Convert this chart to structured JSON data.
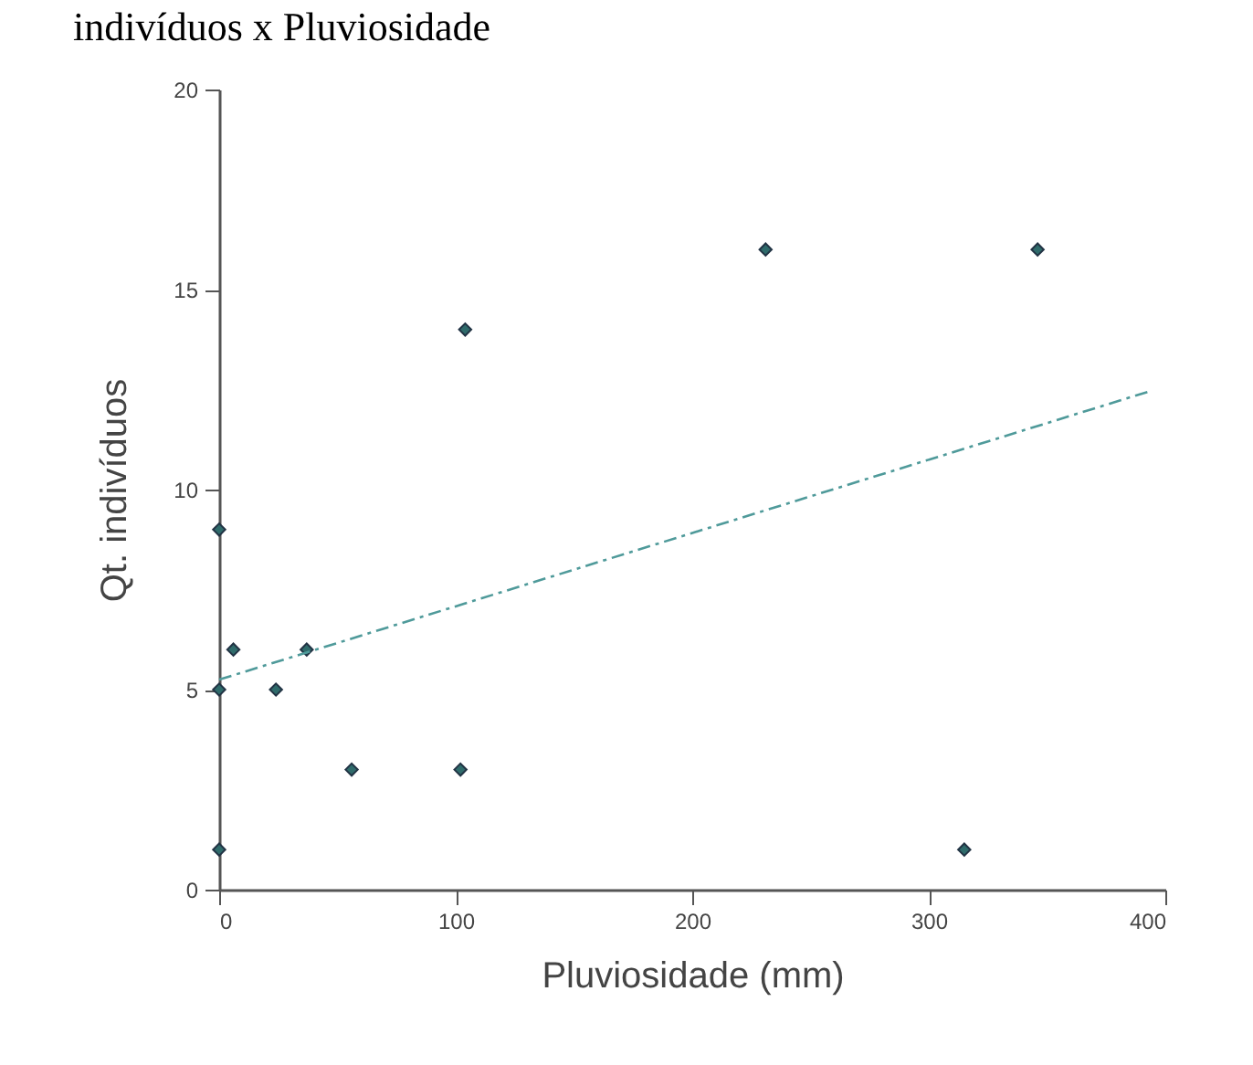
{
  "chart_data": {
    "type": "scatter",
    "title": "indivíduos x Pluviosidade",
    "xlabel": "Pluviosidade (mm)",
    "ylabel": "Qt. indivíduos",
    "xlim": [
      0,
      400
    ],
    "xticks": [
      0,
      100,
      200,
      300,
      400
    ],
    "ylim": [
      0,
      20
    ],
    "yticks": [
      0,
      5,
      10,
      15,
      20
    ],
    "grid": false,
    "series": [
      {
        "marker": "diamond",
        "color": "#2f6b6b",
        "x": [
          0,
          0,
          0,
          6,
          24,
          37,
          56,
          102,
          104,
          231,
          315,
          346
        ],
        "values": [
          9,
          5,
          1,
          6,
          5,
          6,
          3,
          3,
          14,
          16,
          1,
          16
        ]
      },
      {
        "type": "line",
        "color": "#4f9a9a",
        "line_style": "dashed",
        "x": [
          0,
          393
        ],
        "values": [
          5.25,
          12.45
        ]
      }
    ]
  }
}
